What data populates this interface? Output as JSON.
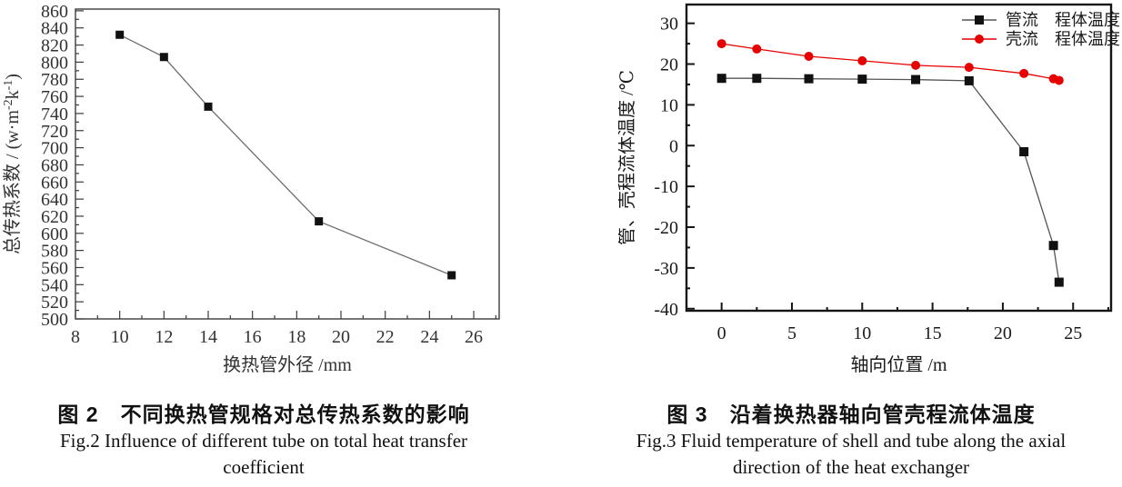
{
  "page": {
    "background": "#ffffff"
  },
  "figures": [
    {
      "caption_zh": "图 2　不同换热管规格对总传热系数的影响",
      "caption_en_line1": "Fig.2  Influence of different tube on total heat transfer",
      "caption_en_line2": "coefficient"
    },
    {
      "caption_zh": "图 3　沿着换热器轴向管壳程流体温度",
      "caption_en_line1": "Fig.3  Fluid temperature of shell and tube along the axial",
      "caption_en_line2": "direction of the heat exchanger"
    }
  ],
  "chart_data": [
    {
      "type": "line",
      "title": "",
      "xlabel": "换热管外径 /mm",
      "ylabel": "总传热系数 / (w·m^{-2}k^{-1})",
      "xlim": [
        8,
        27.15
      ],
      "ylim": [
        500,
        862
      ],
      "x_major_ticks": [
        8,
        10,
        12,
        14,
        16,
        18,
        20,
        22,
        24,
        26
      ],
      "x_minor_step": 1,
      "y_major_ticks": [
        500,
        520,
        540,
        560,
        580,
        600,
        620,
        640,
        660,
        680,
        700,
        720,
        740,
        760,
        780,
        800,
        820,
        840,
        860
      ],
      "y_minor_step": 10,
      "grid": false,
      "legend": false,
      "series": [
        {
          "name": "总传热系数",
          "marker": "square",
          "line_color": "#6e6e6e",
          "marker_color": "#111111",
          "x": [
            10,
            12,
            14,
            19,
            25
          ],
          "y": [
            832,
            806,
            748,
            614,
            551
          ]
        }
      ]
    },
    {
      "type": "line",
      "title": "",
      "xlabel": "轴向位置 /m",
      "ylabel": "管、壳程流体温度 /℃",
      "xlim": [
        -2.5,
        27.7
      ],
      "ylim": [
        -40.5,
        34.6
      ],
      "x_major_ticks": [
        0,
        5,
        10,
        15,
        20,
        25
      ],
      "x_minor_step": 2.5,
      "y_major_ticks": [
        -40,
        -30,
        -20,
        -10,
        0,
        10,
        20,
        30
      ],
      "y_minor_step": 5,
      "grid": false,
      "legend": true,
      "legend_position": "top-right",
      "series": [
        {
          "name": "管流　程体温度",
          "marker": "square",
          "line_color": "#555555",
          "marker_color": "#111111",
          "x": [
            0,
            2.5,
            6.2,
            10,
            13.8,
            17.6,
            21.5,
            23.6,
            24
          ],
          "y": [
            16.5,
            16.5,
            16.4,
            16.3,
            16.2,
            15.9,
            -1.5,
            -24.5,
            -33.5
          ]
        },
        {
          "name": "壳流　程体温度",
          "marker": "circle",
          "line_color": "#e60000",
          "marker_color": "#e60000",
          "x": [
            0,
            2.5,
            6.2,
            10,
            13.8,
            17.6,
            21.5,
            23.6,
            24
          ],
          "y": [
            25,
            23.7,
            21.9,
            20.8,
            19.7,
            19.2,
            17.7,
            16.4,
            16
          ]
        }
      ]
    }
  ]
}
